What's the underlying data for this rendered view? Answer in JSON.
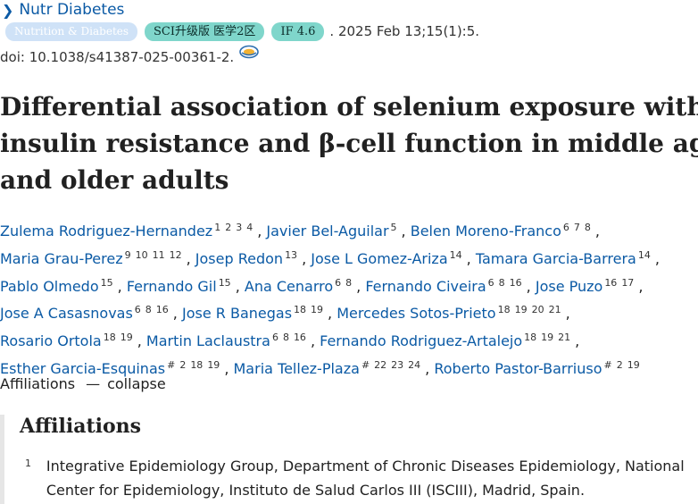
{
  "journal": {
    "name": "Nutr Diabetes"
  },
  "badges": {
    "topic": "Nutrition & Diabetes",
    "sci": "SCI升级版 医学2区",
    "impact": "IF 4.6"
  },
  "citation": {
    "date": ". 2025 Feb 13;15(1):5.",
    "doi": "doi: 10.1038/s41387-025-00361-2."
  },
  "title_lines": [
    "Differential association of selenium exposure with",
    "insulin resistance and β-cell function in middle age",
    "and older adults"
  ],
  "authors": [
    {
      "name": "Zulema Rodriguez-Hernandez",
      "sup": [
        "1",
        "2",
        "3",
        "4"
      ],
      "sep": ","
    },
    {
      "name": "Javier Bel-Aguilar",
      "sup": [
        "5"
      ],
      "sep": ","
    },
    {
      "name": "Belen Moreno-Franco",
      "sup": [
        "6",
        "7",
        "8"
      ],
      "sep": ","
    },
    {
      "name": "Maria Grau-Perez",
      "sup": [
        "9",
        "10",
        "11",
        "12"
      ],
      "sep": ","
    },
    {
      "name": "Josep Redon",
      "sup": [
        "13"
      ],
      "sep": ","
    },
    {
      "name": "Jose L Gomez-Ariza",
      "sup": [
        "14"
      ],
      "sep": ","
    },
    {
      "name": "Tamara Garcia-Barrera",
      "sup": [
        "14"
      ],
      "sep": ","
    },
    {
      "name": "Pablo Olmedo",
      "sup": [
        "15"
      ],
      "sep": ","
    },
    {
      "name": "Fernando Gil",
      "sup": [
        "15"
      ],
      "sep": ","
    },
    {
      "name": "Ana Cenarro",
      "sup": [
        "6",
        "8"
      ],
      "sep": ","
    },
    {
      "name": "Fernando Civeira",
      "sup": [
        "6",
        "8",
        "16"
      ],
      "sep": ","
    },
    {
      "name": "Jose Puzo",
      "sup": [
        "16",
        "17"
      ],
      "sep": ","
    },
    {
      "name": "Jose A Casasnovas",
      "sup": [
        "6",
        "8",
        "16"
      ],
      "sep": ","
    },
    {
      "name": "Jose R Banegas",
      "sup": [
        "18",
        "19"
      ],
      "sep": ","
    },
    {
      "name": "Mercedes Sotos-Prieto",
      "sup": [
        "18",
        "19",
        "20",
        "21"
      ],
      "sep": ","
    },
    {
      "name": "Rosario Ortola",
      "sup": [
        "18",
        "19"
      ],
      "sep": ","
    },
    {
      "name": "Martin Laclaustra",
      "sup": [
        "6",
        "8",
        "16"
      ],
      "sep": ","
    },
    {
      "name": "Fernando Rodriguez-Artalejo",
      "sup": [
        "18",
        "19",
        "21"
      ],
      "sep": ","
    },
    {
      "name": "Esther Garcia-Esquinas",
      "sup": [
        "#",
        "2",
        "18",
        "19"
      ],
      "sep": ","
    },
    {
      "name": "Maria Tellez-Plaza",
      "sup": [
        "#",
        "22",
        "23",
        "24"
      ],
      "sep": ","
    },
    {
      "name": "Roberto Pastor-Barriuso",
      "sup": [
        "#",
        "2",
        "19"
      ],
      "sep": ""
    }
  ],
  "affiliations_toggle": {
    "label": "Affiliations",
    "dash": "—",
    "action": "collapse"
  },
  "affiliations": {
    "heading": "Affiliations",
    "items": [
      {
        "num": "1",
        "text": "Integrative Epidemiology Group, Department of Chronic Diseases Epidemiology, National Center for Epidemiology, Instituto de Salud Carlos III (ISCIII), Madrid, Spain."
      }
    ]
  }
}
